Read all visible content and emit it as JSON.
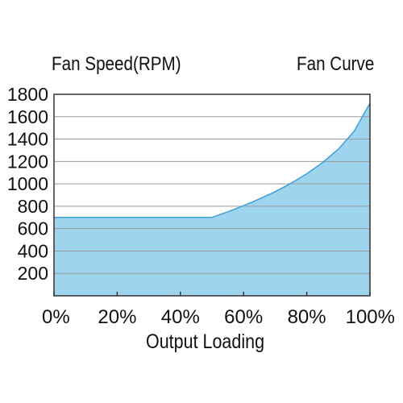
{
  "chart_data": {
    "type": "area",
    "title": "Fan Curve",
    "ylabel": "Fan Speed(RPM)",
    "xlabel": "Output Loading",
    "x": [
      0,
      10,
      20,
      30,
      40,
      50,
      55,
      60,
      65,
      70,
      75,
      80,
      85,
      90,
      95,
      100
    ],
    "series": [
      {
        "values": [
          700,
          700,
          700,
          700,
          700,
          700,
          750,
          805,
          865,
          930,
          1005,
          1090,
          1190,
          1310,
          1470,
          1720
        ]
      }
    ],
    "xlim": [
      0,
      100
    ],
    "ylim": [
      0,
      1800
    ],
    "x_ticks": [
      "0%",
      "20%",
      "40%",
      "60%",
      "80%",
      "100%"
    ],
    "x_tick_values": [
      0,
      20,
      40,
      60,
      80,
      100
    ],
    "y_ticks": [
      "200",
      "400",
      "600",
      "800",
      "1000",
      "1200",
      "1400",
      "1600",
      "1800"
    ],
    "y_tick_values": [
      200,
      400,
      600,
      800,
      1000,
      1200,
      1400,
      1600,
      1800
    ],
    "grid": true,
    "colors": {
      "fill": "#9fd4ef",
      "line": "#3d9fd6",
      "grid": "#9a9a9a",
      "frame": "#333333",
      "text": "#111111"
    }
  }
}
